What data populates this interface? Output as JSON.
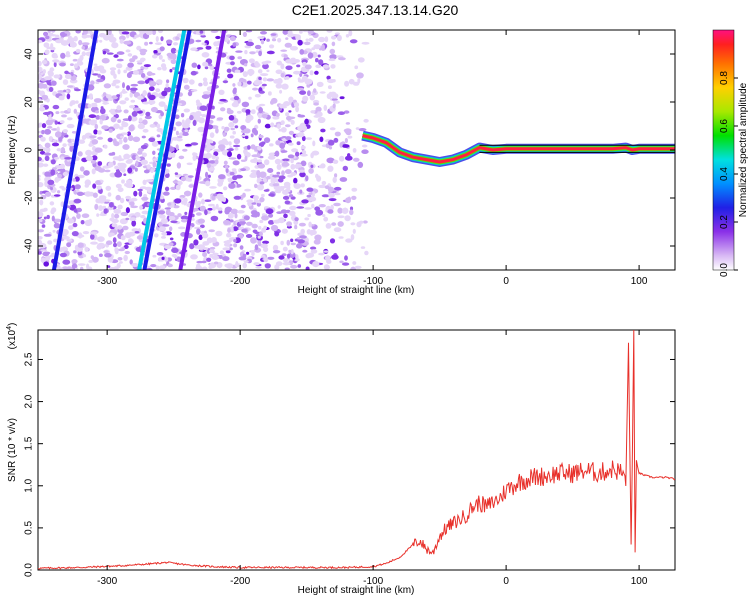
{
  "title": "C2E1.2025.347.13.14.G20",
  "chart_data": [
    {
      "type": "heatmap",
      "xlabel": "Height of straight line (km)",
      "ylabel": "Frequency (Hz)",
      "xlim": [
        -352,
        127
      ],
      "ylim": [
        -50,
        50
      ],
      "xticks": [
        -300,
        -200,
        -100,
        0,
        100
      ],
      "yticks": [
        -40,
        -20,
        0,
        20,
        40
      ],
      "colorbar": {
        "label": "Normalized spectral amplitude",
        "range": [
          0.0,
          1.0
        ],
        "ticks": [
          0.0,
          0.2,
          0.4,
          0.6,
          0.8
        ],
        "tick_labels": [
          "0.0",
          "0.2",
          "0.4",
          "0.6",
          "0.8"
        ],
        "colormap": [
          "#ffffff",
          "#c8a0f0",
          "#7a1ee6",
          "#1a1ae6",
          "#00a0ff",
          "#00e6e6",
          "#00e600",
          "#a0e600",
          "#ffd000",
          "#ff8000",
          "#ff2000",
          "#ff1080"
        ]
      },
      "tone_line": {
        "color": "#ff2040",
        "x": [
          -108,
          -100,
          -90,
          -80,
          -70,
          -60,
          -50,
          -40,
          -30,
          -20,
          -10,
          0,
          20,
          40,
          60,
          80,
          90,
          95,
          100,
          127
        ],
        "y": [
          6,
          5,
          3,
          -1,
          -3,
          -4,
          -5,
          -4,
          -2,
          1,
          0,
          0.5,
          0.5,
          0.5,
          0.5,
          0.5,
          1,
          0,
          0.5,
          0.5
        ]
      },
      "streaks": [
        {
          "x_at_ylo": -340,
          "x_at_yhi": -308,
          "color": "#1a1ae6"
        },
        {
          "x_at_ylo": -276,
          "x_at_yhi": -242,
          "color": "#00c8e6"
        },
        {
          "x_at_ylo": -272,
          "x_at_yhi": -238,
          "color": "#1a1ae6"
        },
        {
          "x_at_ylo": -245,
          "x_at_yhi": -212,
          "color": "#7a1ee6"
        }
      ],
      "noise_region_x": [
        -352,
        -105
      ]
    },
    {
      "type": "line",
      "xlabel": "Height of straight line (km)",
      "ylabel": "SNR (10 * v/v)",
      "multiplier_label": "(x10",
      "multiplier_exp": "4",
      "multiplier_close": ")",
      "xlim": [
        -352,
        127
      ],
      "ylim": [
        0,
        2.85
      ],
      "xticks": [
        -300,
        -200,
        -100,
        0,
        100
      ],
      "yticks": [
        0.0,
        0.5,
        1.0,
        1.5,
        2.0,
        2.5
      ],
      "ytick_labels": [
        "0.0",
        "0.5",
        "1.0",
        "1.5",
        "2.0",
        "2.5"
      ],
      "series": [
        {
          "color": "#e8302a",
          "x": [
            -352,
            -320,
            -290,
            -270,
            -255,
            -240,
            -220,
            -200,
            -180,
            -150,
            -120,
            -100,
            -90,
            -80,
            -70,
            -65,
            -60,
            -55,
            -50,
            -45,
            -40,
            -35,
            -30,
            -25,
            -20,
            -15,
            -10,
            -5,
            0,
            10,
            20,
            30,
            40,
            50,
            60,
            70,
            80,
            88,
            90,
            92,
            94,
            95,
            96,
            97,
            98,
            100,
            105,
            110,
            120,
            127
          ],
          "y": [
            0.02,
            0.03,
            0.05,
            0.07,
            0.09,
            0.06,
            0.04,
            0.03,
            0.03,
            0.03,
            0.03,
            0.04,
            0.08,
            0.15,
            0.3,
            0.35,
            0.25,
            0.2,
            0.4,
            0.5,
            0.55,
            0.6,
            0.65,
            0.75,
            0.8,
            0.75,
            0.8,
            0.85,
            0.95,
            1.05,
            1.1,
            1.12,
            1.15,
            1.15,
            1.18,
            1.15,
            1.2,
            1.15,
            1.0,
            2.7,
            0.3,
            1.4,
            2.85,
            0.2,
            1.3,
            1.15,
            1.12,
            1.1,
            1.1,
            1.08
          ]
        }
      ]
    }
  ]
}
